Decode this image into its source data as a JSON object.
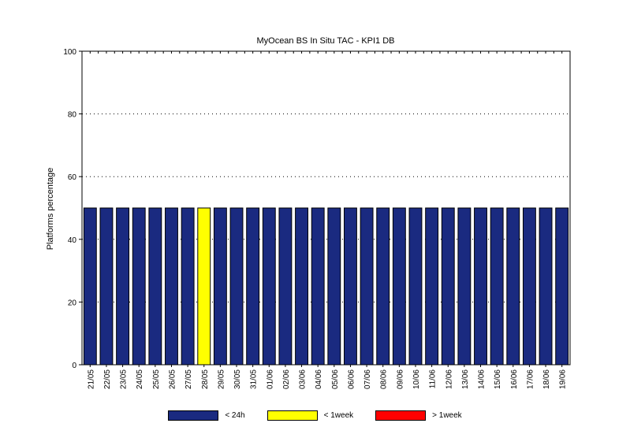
{
  "chart_data": {
    "type": "bar",
    "stacked": true,
    "title": "MyOcean  BS In Situ TAC - KPI1  DB",
    "xlabel": "",
    "ylabel": "Platforms percentage",
    "ylim": [
      0,
      100
    ],
    "yticks": [
      0,
      20,
      40,
      60,
      80,
      100
    ],
    "grid": "horizontal dotted",
    "legend_position": "bottom",
    "categories": [
      "21/05",
      "22/05",
      "23/05",
      "24/05",
      "25/05",
      "26/05",
      "27/05",
      "28/05",
      "29/05",
      "30/05",
      "31/05",
      "01/06",
      "02/06",
      "03/06",
      "04/06",
      "05/06",
      "06/06",
      "07/06",
      "08/06",
      "09/06",
      "10/06",
      "11/06",
      "12/06",
      "13/06",
      "14/06",
      "15/06",
      "16/06",
      "17/06",
      "18/06",
      "19/06"
    ],
    "series": [
      {
        "name": "< 24h",
        "color": "#1a2a80",
        "values": [
          50,
          50,
          50,
          50,
          50,
          50,
          50,
          0,
          50,
          50,
          50,
          50,
          50,
          50,
          50,
          50,
          50,
          50,
          50,
          50,
          50,
          50,
          50,
          50,
          50,
          50,
          50,
          50,
          50,
          50
        ]
      },
      {
        "name": "< 1week",
        "color": "#ffff00",
        "values": [
          0,
          0,
          0,
          0,
          0,
          0,
          0,
          50,
          0,
          0,
          0,
          0,
          0,
          0,
          0,
          0,
          0,
          0,
          0,
          0,
          0,
          0,
          0,
          0,
          0,
          0,
          0,
          0,
          0,
          0
        ]
      },
      {
        "name": "> 1week",
        "color": "#ff0000",
        "values": [
          0,
          0,
          0,
          0,
          0,
          0,
          0,
          0,
          0,
          0,
          0,
          0,
          0,
          0,
          0,
          0,
          0,
          0,
          0,
          0,
          0,
          0,
          0,
          0,
          0,
          0,
          0,
          0,
          0,
          0
        ]
      }
    ]
  }
}
